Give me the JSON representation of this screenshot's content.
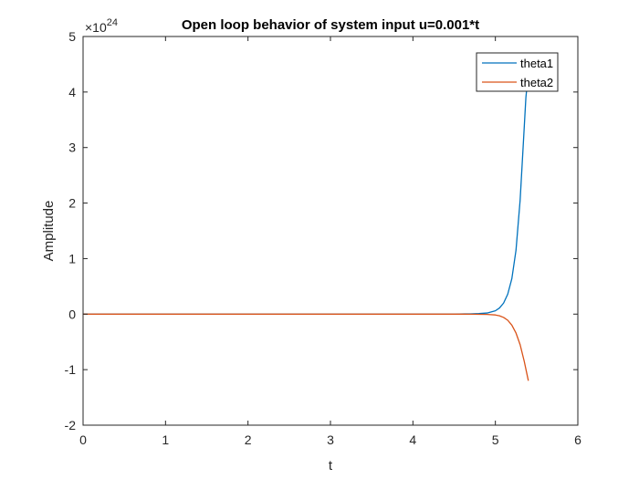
{
  "chart_data": {
    "type": "line",
    "title": "Open loop behavior of system input u=0.001*t",
    "xlabel": "t",
    "ylabel": "Amplitude",
    "xlim": [
      0,
      6
    ],
    "ylim": [
      -2,
      5
    ],
    "xticks": [
      0,
      1,
      2,
      3,
      4,
      5,
      6
    ],
    "yticks": [
      -2,
      -1,
      0,
      1,
      2,
      3,
      4,
      5
    ],
    "y_exponent_label": "×10",
    "y_exponent": "24",
    "grid": false,
    "legend_position": "top-right",
    "series": [
      {
        "name": "theta1",
        "color": "#0072BD",
        "x": [
          0,
          1,
          2,
          3,
          4,
          4.5,
          4.7,
          4.8,
          4.9,
          5.0,
          5.05,
          5.1,
          5.15,
          5.2,
          5.25,
          5.3,
          5.34,
          5.37,
          5.4
        ],
        "y": [
          0,
          0,
          0,
          0,
          0,
          0.001,
          0.005,
          0.01,
          0.02,
          0.06,
          0.11,
          0.2,
          0.36,
          0.64,
          1.15,
          2.05,
          3.1,
          3.9,
          4.35
        ]
      },
      {
        "name": "theta2",
        "color": "#D95319",
        "x": [
          0,
          1,
          2,
          3,
          4,
          4.5,
          4.7,
          4.8,
          4.9,
          5.0,
          5.05,
          5.1,
          5.15,
          5.2,
          5.25,
          5.3,
          5.35,
          5.4
        ],
        "y": [
          0,
          0,
          0,
          0,
          0,
          0,
          -0.001,
          -0.003,
          -0.006,
          -0.015,
          -0.03,
          -0.06,
          -0.11,
          -0.2,
          -0.34,
          -0.55,
          -0.85,
          -1.2
        ]
      }
    ]
  }
}
